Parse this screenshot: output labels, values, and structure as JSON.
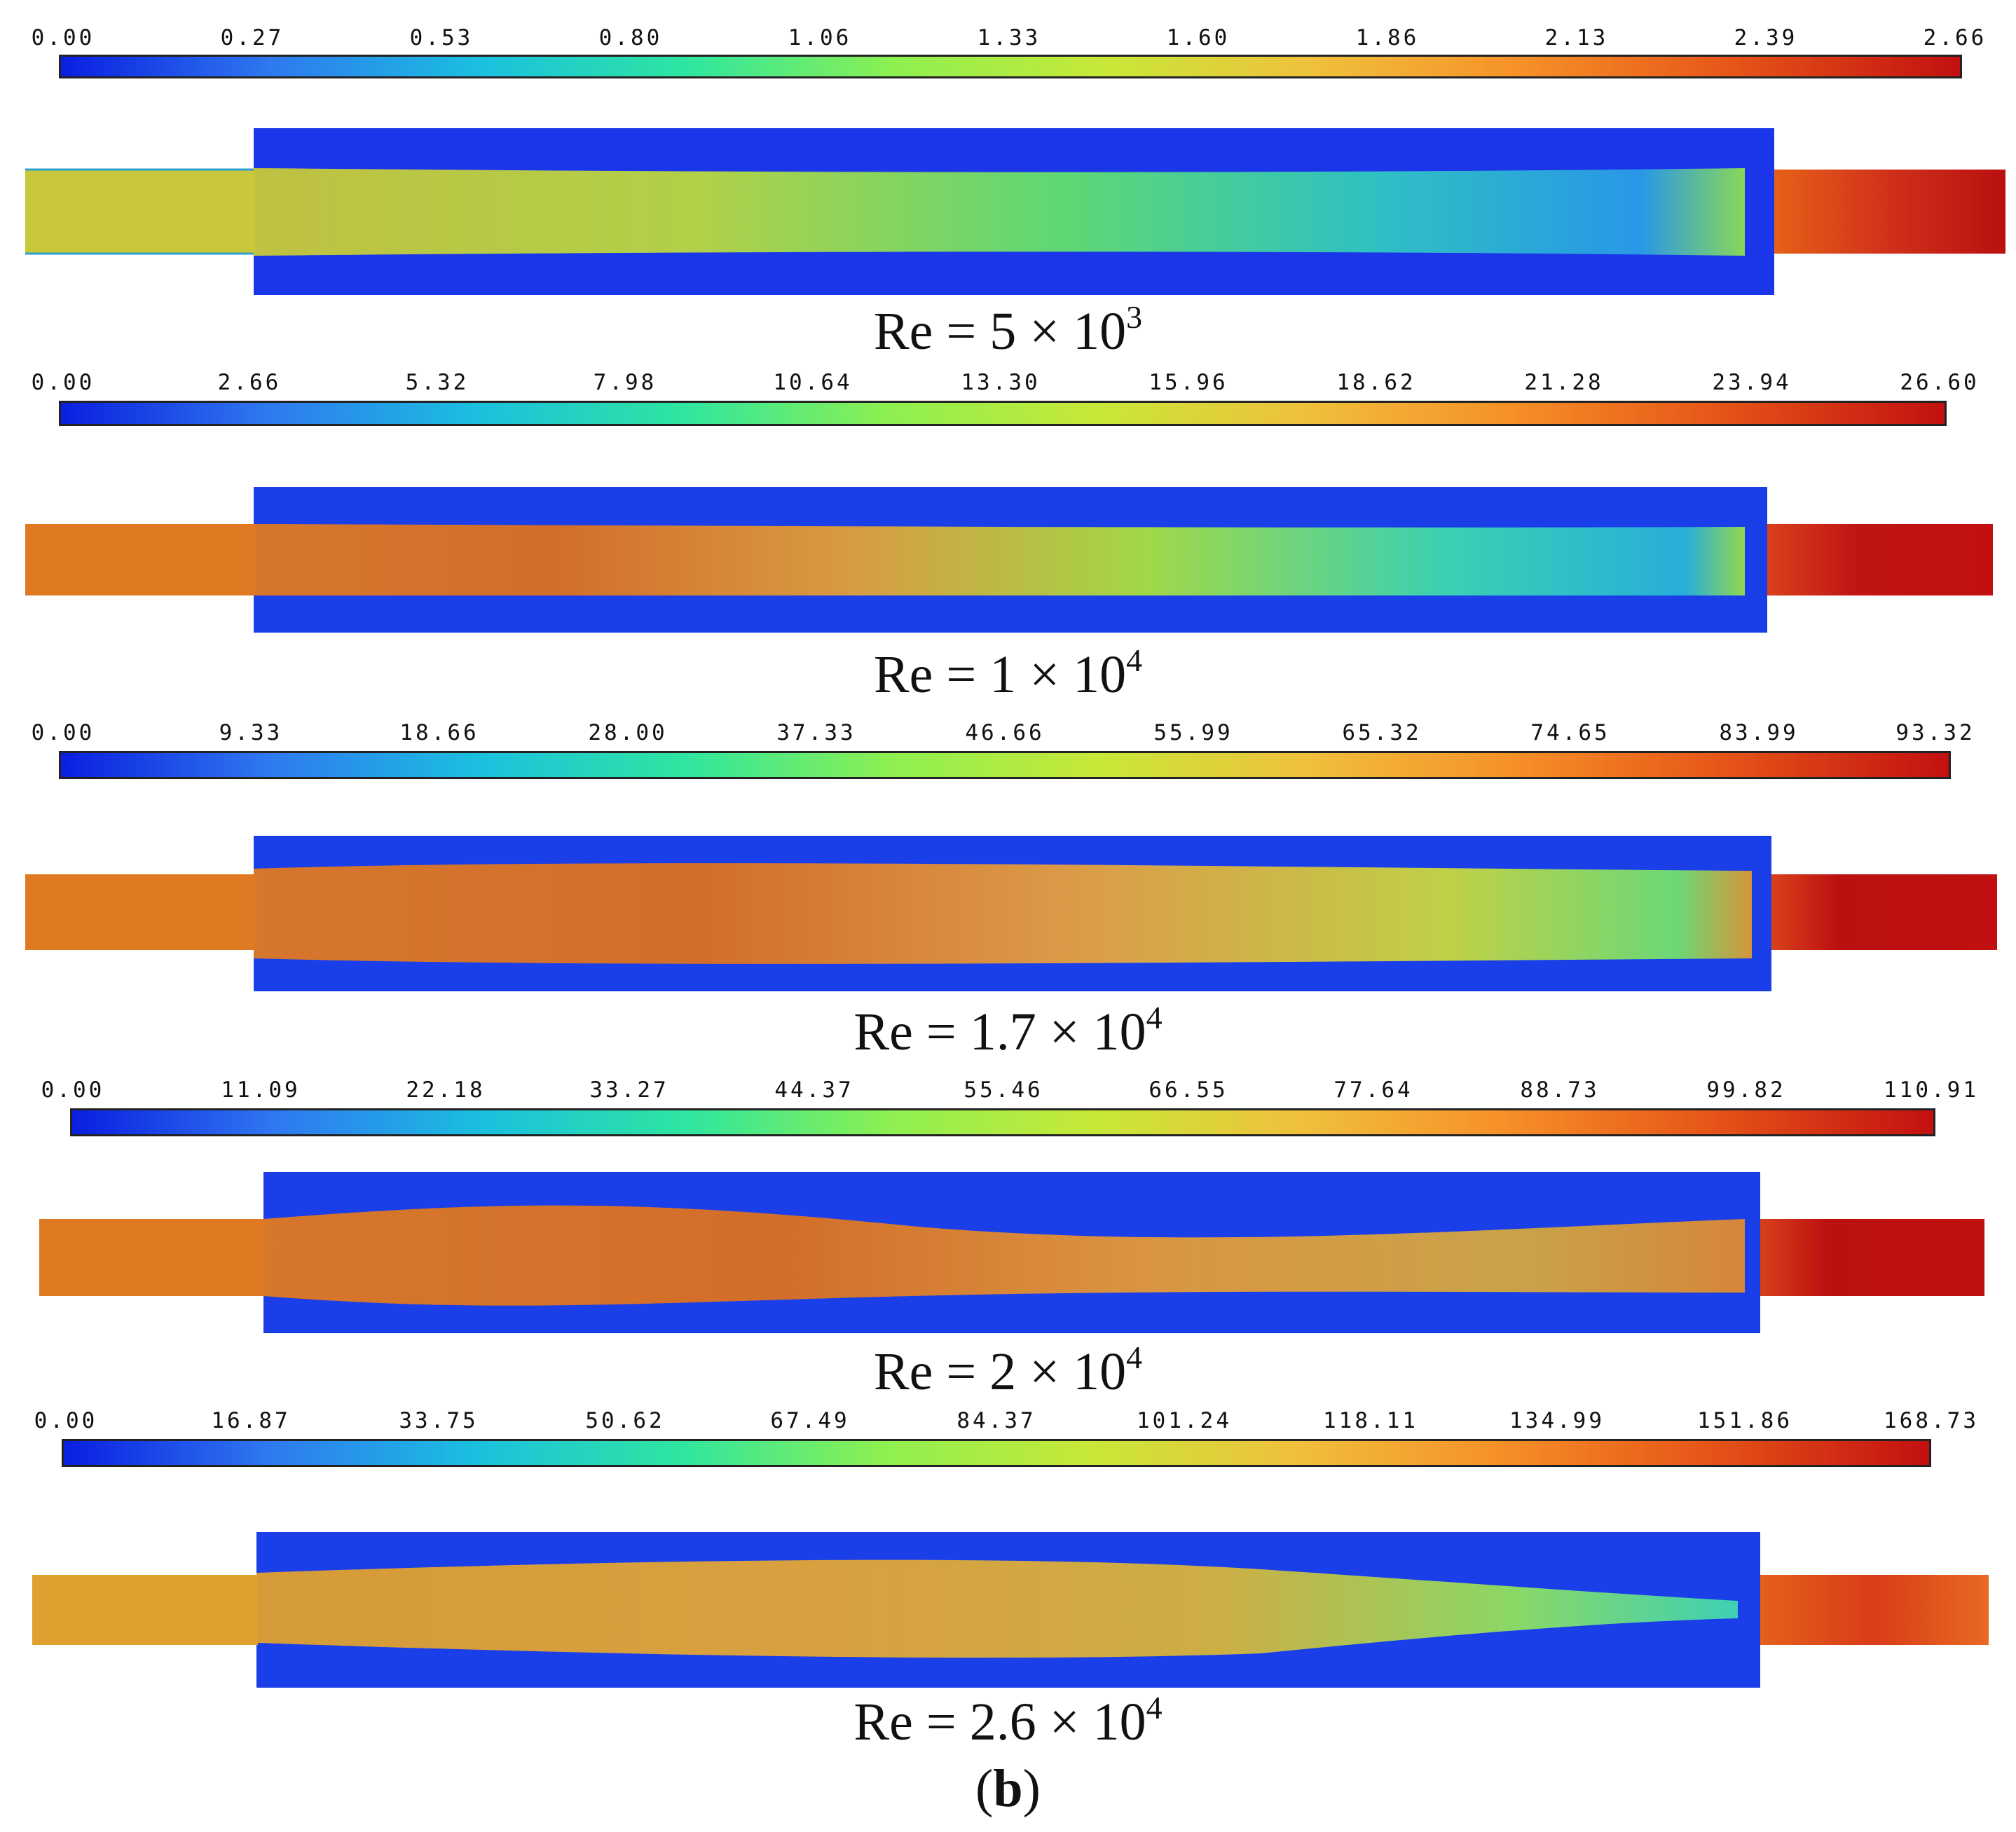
{
  "figure": {
    "colormap": [
      "#0a1ee0",
      "#2f78f0",
      "#1bbfe0",
      "#2ee6a0",
      "#8ef050",
      "#c8e838",
      "#f0c03c",
      "#f69028",
      "#e65518",
      "#c21010"
    ],
    "caption": {
      "open": "(",
      "letter": "b",
      "close": ")"
    },
    "panels": [
      {
        "colorbar_ticks": [
          "0.00",
          "0.27",
          "0.53",
          "0.80",
          "1.06",
          "1.33",
          "1.60",
          "1.86",
          "2.13",
          "2.39",
          "2.66"
        ],
        "re_mantissa": "Re = 5 × 10",
        "re_exponent": "3",
        "inlet_level": 0.62,
        "outlet_level": 0.96
      },
      {
        "colorbar_ticks": [
          "0.00",
          "2.66",
          "5.32",
          "7.98",
          "10.64",
          "13.30",
          "15.96",
          "18.62",
          "21.28",
          "23.94",
          "26.60"
        ],
        "re_mantissa": "Re = 1 × 10",
        "re_exponent": "4",
        "inlet_level": 0.8,
        "outlet_level": 0.97
      },
      {
        "colorbar_ticks": [
          "0.00",
          "9.33",
          "18.66",
          "28.00",
          "37.33",
          "46.66",
          "55.99",
          "65.32",
          "74.65",
          "83.99",
          "93.32"
        ],
        "re_mantissa": "Re = 1.7 × 10",
        "re_exponent": "4",
        "inlet_level": 0.8,
        "outlet_level": 0.98
      },
      {
        "colorbar_ticks": [
          "0.00",
          "11.09",
          "22.18",
          "33.27",
          "44.37",
          "55.46",
          "66.55",
          "77.64",
          "88.73",
          "99.82",
          "110.91"
        ],
        "re_mantissa": "Re = 2 × 10",
        "re_exponent": "4",
        "inlet_level": 0.8,
        "outlet_level": 0.98
      },
      {
        "colorbar_ticks": [
          "0.00",
          "16.87",
          "33.75",
          "50.62",
          "67.49",
          "84.37",
          "101.24",
          "118.11",
          "134.99",
          "151.86",
          "168.73"
        ],
        "re_mantissa": "Re = 2.6 × 10",
        "re_exponent": "4",
        "inlet_level": 0.73,
        "outlet_level": 0.92
      }
    ]
  }
}
